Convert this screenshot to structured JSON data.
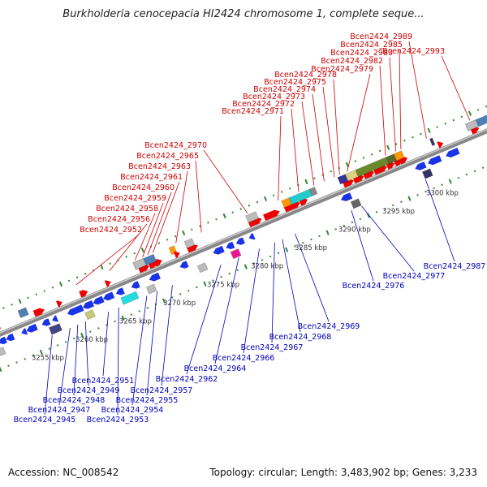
{
  "title": "Burkholderia cenocepacia HI2424 chromosome 1, complete seque...",
  "footer": {
    "accession": "Accession: NC_008542",
    "topology": "Topology: circular; Length: 3,483,902 bp; Genes: 3,233"
  },
  "colors": {
    "forward_label": "#cc0000",
    "reverse_label": "#0000bb",
    "forward_gene": "#ee0000",
    "reverse_gene": "#1a33e6",
    "backbone": "#888888",
    "tick": "#338833"
  },
  "ruler": [
    {
      "text": "3255 kbp",
      "pos": 17.1
    },
    {
      "text": "3260 kbp",
      "pos": 34.3
    },
    {
      "text": "3265 kbp",
      "pos": 51.4
    },
    {
      "text": "3270 kbp",
      "pos": 68.6
    },
    {
      "text": "3275 kbp",
      "pos": 85.7
    },
    {
      "text": "3280 kbp",
      "pos": 102.9
    },
    {
      "text": "3285 kbp",
      "pos": 120.0
    },
    {
      "text": "3290 kbp",
      "pos": 137.1
    },
    {
      "text": "3295 kbp",
      "pos": 154.3
    },
    {
      "text": "3300 kbp",
      "pos": 171.4
    }
  ],
  "forward_labels": [
    {
      "name": "Bcen2424_2952",
      "pos": 37
    },
    {
      "name": "Bcen2424_2956",
      "pos": 50
    },
    {
      "name": "Bcen2424_2958",
      "pos": 60
    },
    {
      "name": "Bcen2424_2959",
      "pos": 63
    },
    {
      "name": "Bcen2424_2960",
      "pos": 65
    },
    {
      "name": "Bcen2424_2961",
      "pos": 67
    },
    {
      "name": "Bcen2424_2963",
      "pos": 76
    },
    {
      "name": "Bcen2424_2965",
      "pos": 86
    },
    {
      "name": "Bcen2424_2970",
      "pos": 104
    },
    {
      "name": "Bcen2424_2971",
      "pos": 116
    },
    {
      "name": "Bcen2424_2972",
      "pos": 124
    },
    {
      "name": "Bcen2424_2973",
      "pos": 130
    },
    {
      "name": "Bcen2424_2974",
      "pos": 134
    },
    {
      "name": "Bcen2424_2975",
      "pos": 138
    },
    {
      "name": "Bcen2424_2978",
      "pos": 140
    },
    {
      "name": "Bcen2424_2979",
      "pos": 143
    },
    {
      "name": "Bcen2424_2982",
      "pos": 158
    },
    {
      "name": "Bcen2424_2983",
      "pos": 162
    },
    {
      "name": "Bcen2424_2985",
      "pos": 164
    },
    {
      "name": "Bcen2424_2989",
      "pos": 174
    },
    {
      "name": "Bcen2424_2993",
      "pos": 191
    }
  ],
  "reverse_labels": [
    {
      "name": "Bcen2424_2945",
      "pos": 22
    },
    {
      "name": "Bcen2424_2947",
      "pos": 29
    },
    {
      "name": "Bcen2424_2948",
      "pos": 32
    },
    {
      "name": "Bcen2424_2949",
      "pos": 35
    },
    {
      "name": "Bcen2424_2951",
      "pos": 44
    },
    {
      "name": "Bcen2424_2953",
      "pos": 48
    },
    {
      "name": "Bcen2424_2954",
      "pos": 59
    },
    {
      "name": "Bcen2424_2955",
      "pos": 63
    },
    {
      "name": "Bcen2424_2957",
      "pos": 69
    },
    {
      "name": "Bcen2424_2962",
      "pos": 88
    },
    {
      "name": "Bcen2424_2964",
      "pos": 95
    },
    {
      "name": "Bcen2424_2966",
      "pos": 103
    },
    {
      "name": "Bcen2424_2967",
      "pos": 109
    },
    {
      "name": "Bcen2424_2968",
      "pos": 112
    },
    {
      "name": "Bcen2424_2969",
      "pos": 117
    },
    {
      "name": "Bcen2424_2976",
      "pos": 139
    },
    {
      "name": "Bcen2424_2977",
      "pos": 143
    },
    {
      "name": "Bcen2424_2987",
      "pos": 168
    }
  ],
  "genes": [
    {
      "s": 0,
      "a": 2,
      "b": 6,
      "c": "#ee0000",
      "t": "arrow"
    },
    {
      "s": 0,
      "a": 1,
      "b": 5,
      "c": "#c8c87a",
      "t": "box"
    },
    {
      "s": 0,
      "a": 19,
      "b": 23,
      "c": "#ee0000",
      "t": "arrow"
    },
    {
      "s": 0,
      "a": 14,
      "b": 17,
      "c": "#808040",
      "t": "box"
    },
    {
      "s": 0,
      "a": 14,
      "b": 17,
      "c": "#4f7fb7",
      "t": "box"
    },
    {
      "s": 0,
      "a": 28,
      "b": 30,
      "c": "#ee0000",
      "t": "arrow"
    },
    {
      "s": 0,
      "a": 37,
      "b": 40,
      "c": "#ee0000",
      "t": "arrow"
    },
    {
      "s": 0,
      "a": 47,
      "b": 49,
      "c": "#ee0000",
      "t": "arrow"
    },
    {
      "s": 0,
      "a": 60,
      "b": 64,
      "c": "#ee0000",
      "t": "arrow"
    },
    {
      "s": 0,
      "a": 64,
      "b": 67,
      "c": "#ee0000",
      "t": "arrow"
    },
    {
      "s": 0,
      "a": 66,
      "b": 69,
      "c": "#ee0000",
      "t": "arrow"
    },
    {
      "s": 0,
      "a": 59,
      "b": 67,
      "c": "#4f7fb7",
      "t": "box"
    },
    {
      "s": 0,
      "a": 59,
      "b": 63,
      "c": "#bbbbbb",
      "t": "box"
    },
    {
      "s": 0,
      "a": 73,
      "b": 75,
      "c": "#ff9900",
      "t": "box"
    },
    {
      "s": 0,
      "a": 79,
      "b": 83,
      "c": "#ee0000",
      "t": "arrow"
    },
    {
      "s": 0,
      "a": 79,
      "b": 82,
      "c": "#bbbbbb",
      "t": "box"
    },
    {
      "s": 0,
      "a": 74,
      "b": 76,
      "c": "#ee0000",
      "t": "arrow"
    },
    {
      "s": 0,
      "a": 103,
      "b": 108,
      "c": "#ee0000",
      "t": "arrow"
    },
    {
      "s": 0,
      "a": 109,
      "b": 115,
      "c": "#ee0000",
      "t": "arrow"
    },
    {
      "s": 0,
      "a": 103,
      "b": 107,
      "c": "#bbbbbb",
      "t": "box"
    },
    {
      "s": 0,
      "a": 117,
      "b": 123,
      "c": "#ee0000",
      "t": "arrow"
    },
    {
      "s": 0,
      "a": 123,
      "b": 126,
      "c": "#ee0000",
      "t": "arrow"
    },
    {
      "s": 0,
      "a": 117,
      "b": 120,
      "c": "#ff9900",
      "t": "box"
    },
    {
      "s": 0,
      "a": 120,
      "b": 128,
      "c": "#22cccc",
      "t": "box"
    },
    {
      "s": 0,
      "a": 128,
      "b": 130,
      "c": "#888888",
      "t": "box"
    },
    {
      "s": 0,
      "a": 140,
      "b": 144,
      "c": "#ee0000",
      "t": "arrow"
    },
    {
      "s": 0,
      "a": 144,
      "b": 148,
      "c": "#ee0000",
      "t": "arrow"
    },
    {
      "s": 0,
      "a": 148,
      "b": 152,
      "c": "#ee0000",
      "t": "arrow"
    },
    {
      "s": 0,
      "a": 152,
      "b": 157,
      "c": "#ee0000",
      "t": "arrow"
    },
    {
      "s": 0,
      "a": 157,
      "b": 160,
      "c": "#ee0000",
      "t": "arrow"
    },
    {
      "s": 0,
      "a": 160,
      "b": 163,
      "c": "#ee0000",
      "t": "arrow"
    },
    {
      "s": 0,
      "a": 162,
      "b": 165,
      "c": "#ee0000",
      "t": "arrow"
    },
    {
      "s": 0,
      "a": 139,
      "b": 142,
      "c": "#333399",
      "t": "box"
    },
    {
      "s": 0,
      "a": 142,
      "b": 146,
      "c": "#e0d080",
      "t": "box"
    },
    {
      "s": 0,
      "a": 146,
      "b": 158,
      "c": "#6a8a2a",
      "t": "box"
    },
    {
      "s": 0,
      "a": 158,
      "b": 161,
      "c": "#556b2f",
      "t": "box"
    },
    {
      "s": 0,
      "a": 161,
      "b": 164,
      "c": "#ff9900",
      "t": "box"
    },
    {
      "s": 0,
      "a": 175,
      "b": 176,
      "c": "#333366",
      "t": "box"
    },
    {
      "s": 0,
      "a": 177,
      "b": 179,
      "c": "#ee0000",
      "t": "arrow"
    },
    {
      "s": 0,
      "a": 190,
      "b": 193,
      "c": "#ee0000",
      "t": "arrow"
    },
    {
      "s": 0,
      "a": 189,
      "b": 200,
      "c": "#4f7fb7",
      "t": "box"
    },
    {
      "s": 0,
      "a": 189,
      "b": 193,
      "c": "#bbbbbb",
      "t": "box"
    },
    {
      "s": 1,
      "a": 0,
      "b": 3,
      "c": "#1a33e6",
      "t": "arrow"
    },
    {
      "s": 1,
      "a": 3,
      "b": 6,
      "c": "#1a33e6",
      "t": "arrow"
    },
    {
      "s": 1,
      "a": 6,
      "b": 9,
      "c": "#1a33e6",
      "t": "arrow"
    },
    {
      "s": 1,
      "a": 14,
      "b": 18,
      "c": "#1a33e6",
      "t": "arrow"
    },
    {
      "s": 1,
      "a": 20,
      "b": 23,
      "c": "#1a33e6",
      "t": "arrow"
    },
    {
      "s": 1,
      "a": 24,
      "b": 26,
      "c": "#1a33e6",
      "t": "arrow"
    },
    {
      "s": 1,
      "a": 30,
      "b": 36,
      "c": "#1a33e6",
      "t": "arrow"
    },
    {
      "s": 1,
      "a": 36,
      "b": 40,
      "c": "#1a33e6",
      "t": "arrow"
    },
    {
      "s": 1,
      "a": 40,
      "b": 44,
      "c": "#1a33e6",
      "t": "arrow"
    },
    {
      "s": 1,
      "a": 44,
      "b": 48,
      "c": "#1a33e6",
      "t": "arrow"
    },
    {
      "s": 1,
      "a": 49,
      "b": 52,
      "c": "#1a33e6",
      "t": "arrow"
    },
    {
      "s": 1,
      "a": 50,
      "b": 56,
      "c": "#22dddd",
      "t": "box"
    },
    {
      "s": 1,
      "a": 55,
      "b": 58,
      "c": "#1a33e6",
      "t": "arrow"
    },
    {
      "s": 1,
      "a": 62,
      "b": 66,
      "c": "#1a33e6",
      "t": "arrow"
    },
    {
      "s": 1,
      "a": 74,
      "b": 77,
      "c": "#1a33e6",
      "t": "arrow"
    },
    {
      "s": 1,
      "a": 87,
      "b": 91,
      "c": "#1a33e6",
      "t": "arrow"
    },
    {
      "s": 1,
      "a": 92,
      "b": 95,
      "c": "#1a33e6",
      "t": "arrow"
    },
    {
      "s": 1,
      "a": 96,
      "b": 99,
      "c": "#1a33e6",
      "t": "arrow"
    },
    {
      "s": 1,
      "a": 101,
      "b": 103,
      "c": "#1a33e6",
      "t": "arrow"
    },
    {
      "s": 1,
      "a": 93,
      "b": 96,
      "c": "#ee1493",
      "t": "box"
    },
    {
      "s": 1,
      "a": 80,
      "b": 83,
      "c": "#bbbbbb",
      "t": "box"
    },
    {
      "s": 1,
      "a": 137,
      "b": 141,
      "c": "#1a33e6",
      "t": "arrow"
    },
    {
      "s": 1,
      "a": 140,
      "b": 143,
      "c": "#666666",
      "t": "box"
    },
    {
      "s": 1,
      "a": 166,
      "b": 170,
      "c": "#1a33e6",
      "t": "arrow"
    },
    {
      "s": 1,
      "a": 171,
      "b": 176,
      "c": "#1a33e6",
      "t": "arrow"
    },
    {
      "s": 1,
      "a": 178,
      "b": 183,
      "c": "#1a33e6",
      "t": "arrow"
    },
    {
      "s": 1,
      "a": 168,
      "b": 171,
      "c": "#333366",
      "t": "box"
    },
    {
      "s": 1,
      "a": 12,
      "b": 14,
      "c": "#1a33e6",
      "t": "arrow"
    },
    {
      "s": 1,
      "a": 22,
      "b": 24,
      "c": "#555555",
      "t": "box"
    },
    {
      "s": 1,
      "a": 36,
      "b": 39,
      "c": "#c8c87a",
      "t": "box"
    },
    {
      "s": 1,
      "a": 22,
      "b": 26,
      "c": "#444488",
      "t": "box"
    },
    {
      "s": 1,
      "a": 60,
      "b": 63,
      "c": "#bbbbbb",
      "t": "box"
    },
    {
      "s": 1,
      "a": 2,
      "b": 4,
      "c": "#bbbbbb",
      "t": "box"
    }
  ]
}
